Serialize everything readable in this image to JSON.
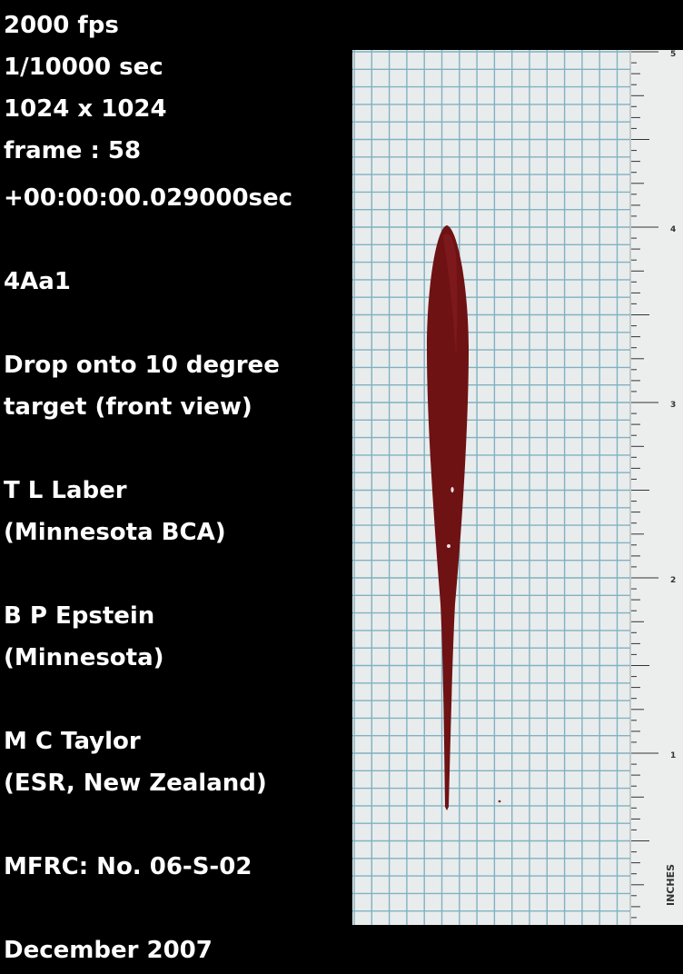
{
  "overlay": {
    "lines": [
      "2000 fps",
      "1/10000 sec",
      "1024 x 1024",
      "frame : 58",
      "+00:00:00.029000sec",
      "4Aa1",
      "Drop onto 10 degree",
      "target (front view)",
      "T L Laber",
      "(Minnesota BCA)",
      "B P Epstein",
      "(Minnesota)",
      "M C Taylor",
      "(ESR, New Zealand)",
      "MFRC:  No. 06-S-02",
      "December 2007"
    ]
  },
  "ruler": {
    "numbers": [
      "5",
      "4",
      "3",
      "2",
      "1"
    ],
    "unit_label": "INCHES"
  },
  "colors": {
    "background": "#000000",
    "paper": "#e9ecec",
    "grid": "#7fb2c2",
    "blood": "#6e1214"
  }
}
